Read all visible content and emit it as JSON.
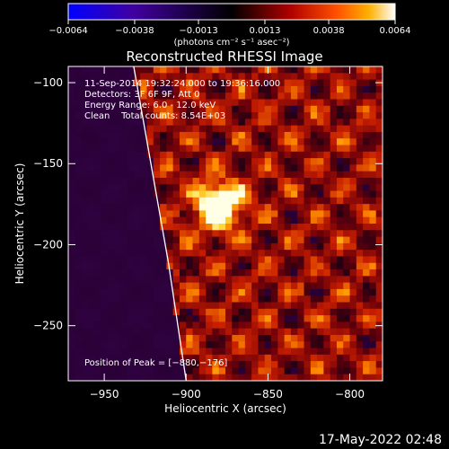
{
  "colorbar": {
    "ticks": [
      "−0.0064",
      "−0.0038",
      "−0.0013",
      "0.0013",
      "0.0038",
      "0.0064"
    ],
    "tick_values": [
      -0.0064,
      -0.0038,
      -0.0013,
      0.0013,
      0.0038,
      0.0064
    ],
    "range": [
      -0.0064,
      0.0064
    ],
    "unit_label": "(photons cm⁻² s⁻¹ asec⁻²)",
    "colors": [
      "#0000ff",
      "#4000a0",
      "#000000",
      "#a00000",
      "#ff4000",
      "#ffb000",
      "#ffffff"
    ]
  },
  "chart_data": {
    "type": "heatmap",
    "title": "Reconstructed RHESSI Image",
    "xlabel": "Heliocentric X (arcsec)",
    "ylabel": "Heliocentric Y (arcsec)",
    "xlim": [
      -972,
      -780
    ],
    "ylim": [
      -284,
      -90
    ],
    "x_ticks": [
      -950,
      -900,
      -850,
      -800
    ],
    "y_ticks": [
      -100,
      -150,
      -200,
      -250
    ],
    "x_tick_labels": [
      "−950",
      "−900",
      "−850",
      "−800"
    ],
    "y_tick_labels": [
      "−100",
      "−150",
      "−200",
      "−250"
    ],
    "peak": [
      -880,
      -176
    ],
    "limb_points": [
      [
        -932,
        -90
      ],
      [
        -925,
        -130
      ],
      [
        -918,
        -170
      ],
      [
        -911,
        -210
      ],
      [
        -905,
        -250
      ],
      [
        -900,
        -284
      ]
    ],
    "grid": false
  },
  "annotations": {
    "time_range": "11-Sep-2014 19:32:24.000 to 19:36:16.000",
    "detectors": "Detectors: 3F 6F 9F, Att 0",
    "energy_range": "Energy Range: 6.0 - 12.0 keV",
    "method_counts": "Clean    Total counts: 8.54E+03",
    "peak_position": "Position of Peak = [−880,−176]"
  },
  "footer": {
    "timestamp": "17-May-2022 02:48"
  }
}
